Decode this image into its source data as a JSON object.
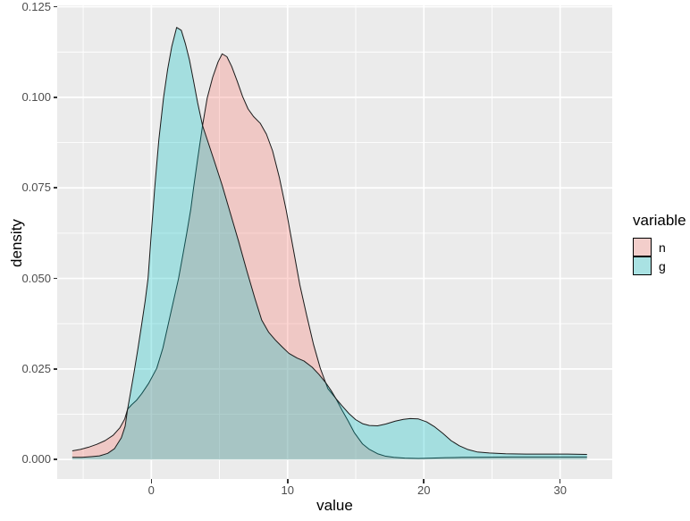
{
  "chart_data": {
    "type": "area",
    "subtype": "density",
    "title": "",
    "xlabel": "value",
    "ylabel": "density",
    "xlim_panel": [
      -6.9,
      33.85
    ],
    "ylim_panel": [
      -0.0054,
      0.1254
    ],
    "grid": true,
    "x_ticks": {
      "values": [
        0,
        10,
        20,
        30
      ],
      "labels": [
        "0",
        "10",
        "20",
        "30"
      ]
    },
    "y_ticks": {
      "values": [
        0.0,
        0.025,
        0.05,
        0.075,
        0.1,
        0.125
      ],
      "labels": [
        "0.000",
        "0.025",
        "0.050",
        "0.075",
        "0.100",
        "0.125"
      ]
    },
    "x_minor": [
      -5,
      5,
      15,
      25
    ],
    "y_minor": [
      0.0125,
      0.0375,
      0.0625,
      0.0875,
      0.1125
    ],
    "legend": {
      "title": "variable",
      "position": "right",
      "entries": [
        {
          "label": "n",
          "key_color": "#F3CECB"
        },
        {
          "label": "g",
          "key_color": "#A9E2E3"
        }
      ]
    },
    "colors": {
      "panel_background": "#EBEBEB",
      "grid_major": "#FFFFFF",
      "grid_minor": "#FFFFFF",
      "tick_text": "#4D4D4D",
      "axis_title_text": "#000000",
      "curve_stroke": "#1A1A1A",
      "n_fill_rgba": "rgba(248,118,109,0.30)",
      "g_fill_rgba": "rgba(0,191,196,0.30)",
      "n_base_hex": "#F8766D",
      "g_base_hex": "#00BFC4"
    },
    "series": [
      {
        "name": "n",
        "peak": {
          "x": 5.2,
          "density": 0.112
        },
        "points": [
          [
            -5.8,
            0.0024
          ],
          [
            -5.2,
            0.0028
          ],
          [
            -4.6,
            0.0034
          ],
          [
            -4.0,
            0.0042
          ],
          [
            -3.4,
            0.0052
          ],
          [
            -2.8,
            0.0067
          ],
          [
            -2.3,
            0.0088
          ],
          [
            -1.95,
            0.0112
          ],
          [
            -1.74,
            0.0139
          ],
          [
            -1.45,
            0.0151
          ],
          [
            -1.1,
            0.0163
          ],
          [
            -0.7,
            0.0182
          ],
          [
            -0.2,
            0.021
          ],
          [
            0.4,
            0.0252
          ],
          [
            0.85,
            0.0308
          ],
          [
            1.25,
            0.0375
          ],
          [
            1.65,
            0.0442
          ],
          [
            2.0,
            0.05
          ],
          [
            2.3,
            0.0562
          ],
          [
            2.6,
            0.0625
          ],
          [
            2.9,
            0.0692
          ],
          [
            3.1,
            0.075
          ],
          [
            3.4,
            0.083
          ],
          [
            3.76,
            0.0922
          ],
          [
            4.1,
            0.0998
          ],
          [
            4.5,
            0.1055
          ],
          [
            4.9,
            0.1098
          ],
          [
            5.2,
            0.112
          ],
          [
            5.55,
            0.1112
          ],
          [
            5.9,
            0.1085
          ],
          [
            6.3,
            0.1045
          ],
          [
            6.7,
            0.1002
          ],
          [
            7.1,
            0.0968
          ],
          [
            7.5,
            0.0947
          ],
          [
            8.0,
            0.0928
          ],
          [
            8.45,
            0.0898
          ],
          [
            8.9,
            0.0852
          ],
          [
            9.4,
            0.0778
          ],
          [
            9.9,
            0.0688
          ],
          [
            10.4,
            0.0585
          ],
          [
            10.9,
            0.0482
          ],
          [
            11.4,
            0.0398
          ],
          [
            11.9,
            0.0318
          ],
          [
            12.4,
            0.0252
          ],
          [
            12.95,
            0.0196
          ],
          [
            13.55,
            0.0168
          ],
          [
            14.0,
            0.0136
          ],
          [
            14.45,
            0.0106
          ],
          [
            14.9,
            0.0074
          ],
          [
            15.5,
            0.0043
          ],
          [
            16.0,
            0.0028
          ],
          [
            16.6,
            0.0016
          ],
          [
            17.2,
            0.0009
          ],
          [
            17.8,
            0.0006
          ],
          [
            18.6,
            0.0004
          ],
          [
            19.6,
            0.0003
          ],
          [
            20.6,
            0.0004
          ],
          [
            21.6,
            0.0005
          ],
          [
            22.8,
            0.0006
          ],
          [
            24.5,
            0.00065
          ],
          [
            26.5,
            0.0007
          ],
          [
            28.5,
            0.0007
          ],
          [
            30.2,
            0.0007
          ],
          [
            31.97,
            0.0007
          ]
        ]
      },
      {
        "name": "g",
        "peak": {
          "x": 1.86,
          "density": 0.1193
        },
        "points": [
          [
            -5.8,
            0.0006
          ],
          [
            -5.1,
            0.0006
          ],
          [
            -4.4,
            0.0008
          ],
          [
            -3.8,
            0.001
          ],
          [
            -3.2,
            0.0017
          ],
          [
            -2.7,
            0.003
          ],
          [
            -2.2,
            0.006
          ],
          [
            -1.92,
            0.0092
          ],
          [
            -1.74,
            0.0139
          ],
          [
            -1.5,
            0.019
          ],
          [
            -1.27,
            0.024
          ],
          [
            -1.0,
            0.0302
          ],
          [
            -0.72,
            0.037
          ],
          [
            -0.45,
            0.0438
          ],
          [
            -0.24,
            0.05
          ],
          [
            0.0,
            0.0625
          ],
          [
            0.25,
            0.075
          ],
          [
            0.55,
            0.0882
          ],
          [
            0.9,
            0.1
          ],
          [
            1.2,
            0.1078
          ],
          [
            1.5,
            0.114
          ],
          [
            1.86,
            0.1193
          ],
          [
            2.2,
            0.1185
          ],
          [
            2.5,
            0.1148
          ],
          [
            2.8,
            0.1103
          ],
          [
            3.1,
            0.1045
          ],
          [
            3.4,
            0.0985
          ],
          [
            3.76,
            0.0922
          ],
          [
            4.2,
            0.0872
          ],
          [
            4.7,
            0.0815
          ],
          [
            5.2,
            0.0757
          ],
          [
            5.8,
            0.068
          ],
          [
            6.4,
            0.0603
          ],
          [
            7.0,
            0.0522
          ],
          [
            7.6,
            0.0445
          ],
          [
            8.1,
            0.0385
          ],
          [
            8.6,
            0.0352
          ],
          [
            9.1,
            0.033
          ],
          [
            9.6,
            0.0311
          ],
          [
            10.1,
            0.0293
          ],
          [
            10.7,
            0.028
          ],
          [
            11.2,
            0.0272
          ],
          [
            11.8,
            0.0255
          ],
          [
            12.3,
            0.0235
          ],
          [
            12.8,
            0.0212
          ],
          [
            13.2,
            0.019
          ],
          [
            13.55,
            0.0168
          ],
          [
            14.0,
            0.0148
          ],
          [
            14.5,
            0.0127
          ],
          [
            15.0,
            0.011
          ],
          [
            15.5,
            0.0099
          ],
          [
            16.0,
            0.0094
          ],
          [
            16.6,
            0.0093
          ],
          [
            17.2,
            0.0098
          ],
          [
            17.9,
            0.0106
          ],
          [
            18.5,
            0.0111
          ],
          [
            19.0,
            0.0113
          ],
          [
            19.6,
            0.0112
          ],
          [
            20.2,
            0.0104
          ],
          [
            20.8,
            0.009
          ],
          [
            21.4,
            0.0072
          ],
          [
            22.0,
            0.0052
          ],
          [
            22.6,
            0.0038
          ],
          [
            23.2,
            0.0028
          ],
          [
            23.9,
            0.0021
          ],
          [
            24.8,
            0.0018
          ],
          [
            26.0,
            0.0016
          ],
          [
            27.5,
            0.0015
          ],
          [
            29.0,
            0.0015
          ],
          [
            30.5,
            0.0015
          ],
          [
            31.97,
            0.0014
          ]
        ]
      }
    ]
  }
}
